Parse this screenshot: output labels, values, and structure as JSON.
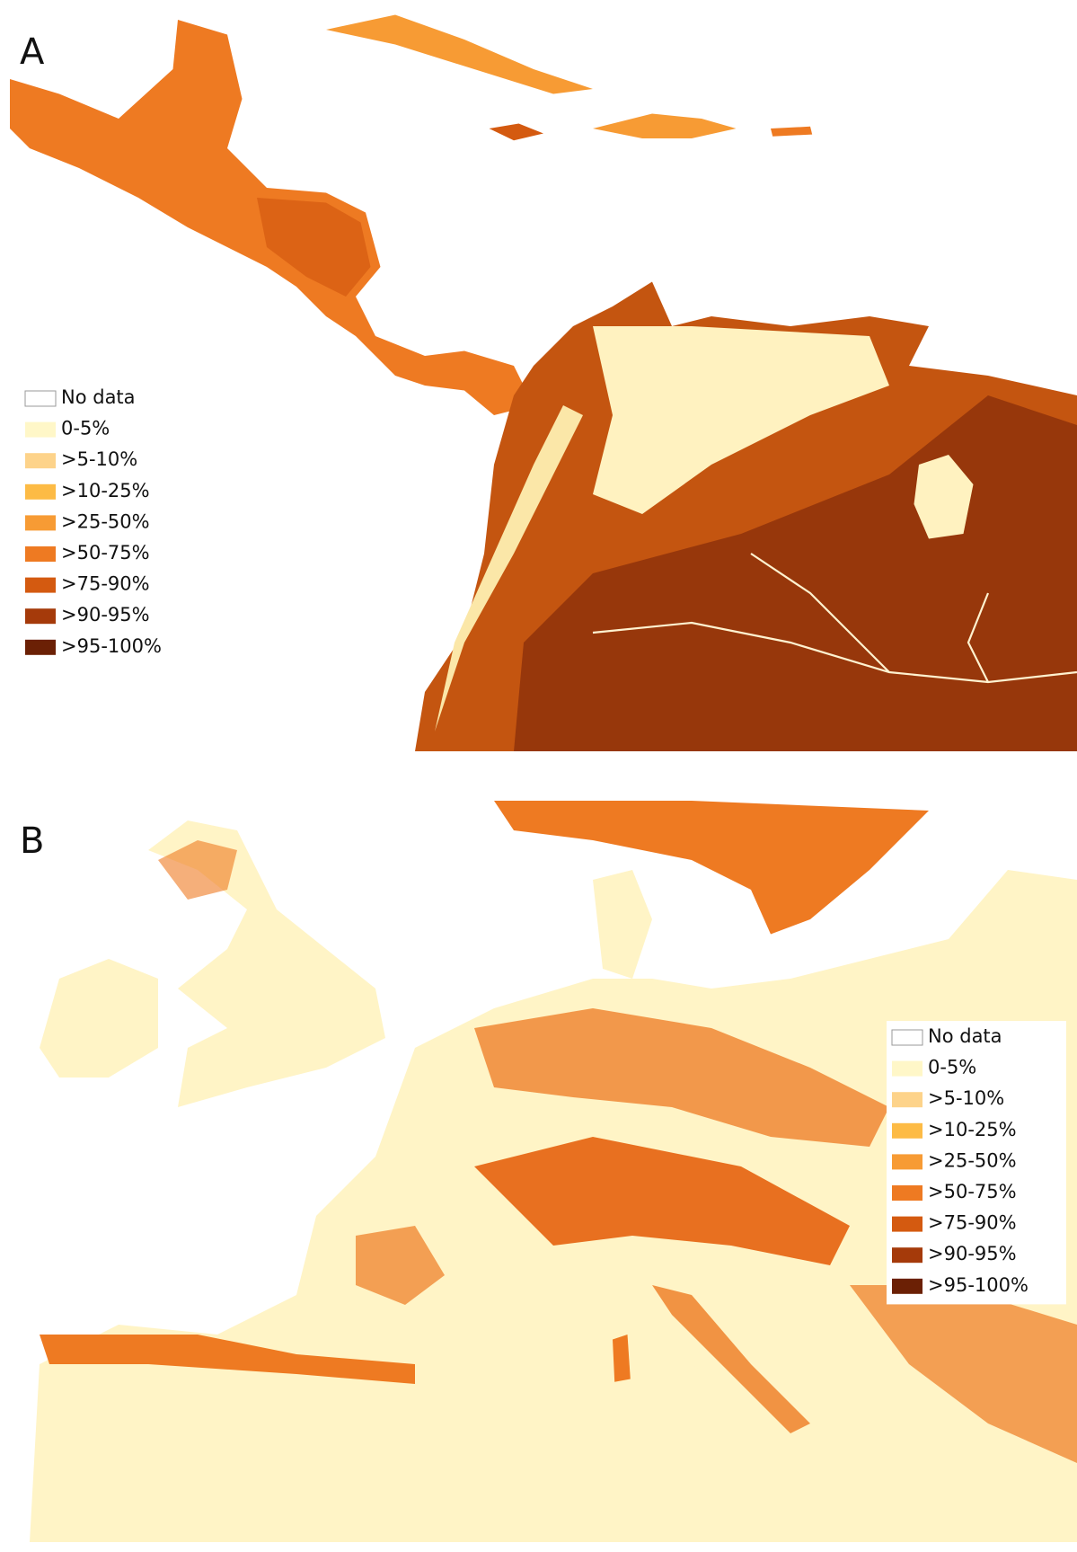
{
  "panels": [
    {
      "label": "A",
      "legend": [
        {
          "label": "No data",
          "color": "#ffffff"
        },
        {
          "label": "0-5%",
          "color": "#fff7c8"
        },
        {
          "label": ">5-10%",
          "color": "#fdd38a"
        },
        {
          "label": ">10-25%",
          "color": "#fdbb45"
        },
        {
          "label": ">25-50%",
          "color": "#f79b34"
        },
        {
          "label": ">50-75%",
          "color": "#ee7a22"
        },
        {
          "label": ">75-90%",
          "color": "#d45a10"
        },
        {
          "label": ">90-95%",
          "color": "#a53a0a"
        },
        {
          "label": ">95-100%",
          "color": "#6b2005"
        }
      ]
    },
    {
      "label": "B",
      "legend": [
        {
          "label": "No data",
          "color": "#ffffff"
        },
        {
          "label": "0-5%",
          "color": "#fff7c8"
        },
        {
          "label": ">5-10%",
          "color": "#fdd38a"
        },
        {
          "label": ">10-25%",
          "color": "#fdbb45"
        },
        {
          "label": ">25-50%",
          "color": "#f79b34"
        },
        {
          "label": ">50-75%",
          "color": "#ee7a22"
        },
        {
          "label": ">75-90%",
          "color": "#d45a10"
        },
        {
          "label": ">90-95%",
          "color": "#a53a0a"
        },
        {
          "label": ">95-100%",
          "color": "#6b2005"
        }
      ]
    }
  ]
}
